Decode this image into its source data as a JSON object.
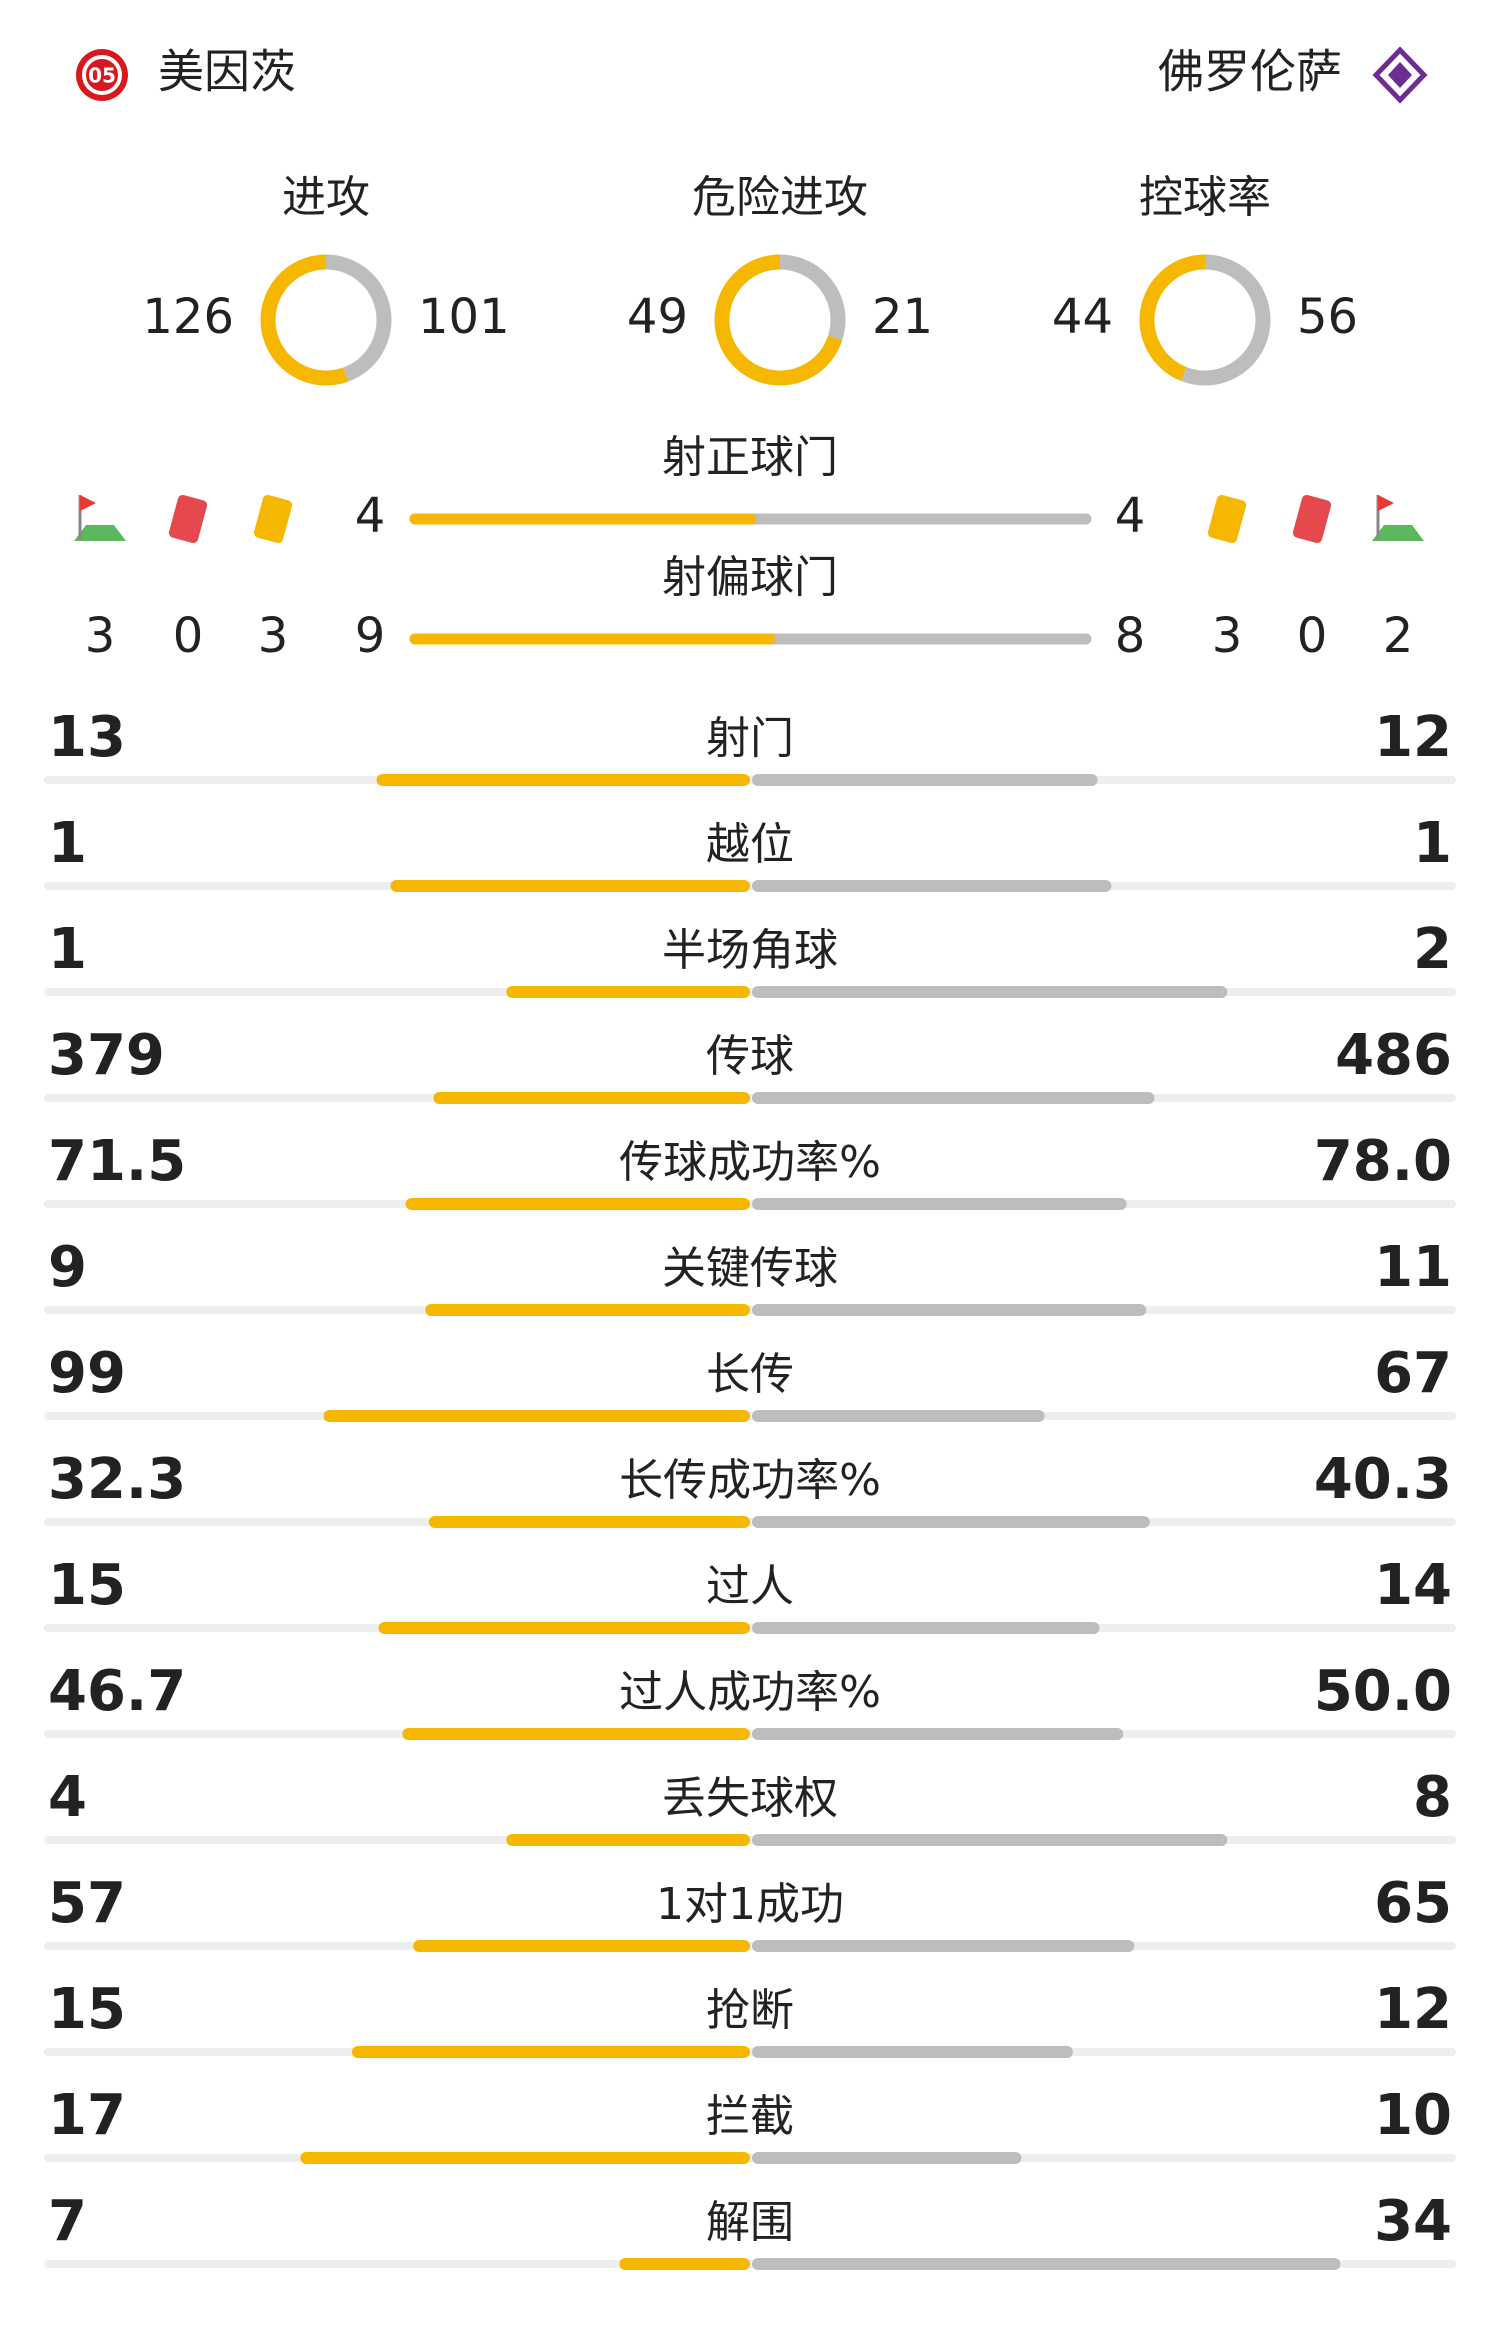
{
  "header": {
    "home_team": "美因茨",
    "away_team": "佛罗伦萨"
  },
  "rings": [
    {
      "label": "进攻",
      "home": 126,
      "away": 101
    },
    {
      "label": "危险进攻",
      "home": 49,
      "away": 21
    },
    {
      "label": "控球率",
      "home": 44,
      "away": 56
    }
  ],
  "shots": [
    {
      "label": "射正球门",
      "home": 4,
      "away": 4
    },
    {
      "label": "射偏球门",
      "home": 9,
      "away": 8
    }
  ],
  "discipline": {
    "home": {
      "corners": 3,
      "red_cards": 0,
      "yellow_cards": 3
    },
    "away": {
      "yellow_cards": 3,
      "red_cards": 0,
      "corners": 2
    }
  },
  "stats": [
    {
      "label": "射门",
      "home": "13",
      "away": "12"
    },
    {
      "label": "越位",
      "home": "1",
      "away": "1"
    },
    {
      "label": "半场角球",
      "home": "1",
      "away": "2"
    },
    {
      "label": "传球",
      "home": "379",
      "away": "486"
    },
    {
      "label": "传球成功率%",
      "home": "71.5",
      "away": "78.0"
    },
    {
      "label": "关键传球",
      "home": "9",
      "away": "11"
    },
    {
      "label": "长传",
      "home": "99",
      "away": "67"
    },
    {
      "label": "长传成功率%",
      "home": "32.3",
      "away": "40.3"
    },
    {
      "label": "过人",
      "home": "15",
      "away": "14"
    },
    {
      "label": "过人成功率%",
      "home": "46.7",
      "away": "50.0"
    },
    {
      "label": "丢失球权",
      "home": "4",
      "away": "8"
    },
    {
      "label": "1对1成功",
      "home": "57",
      "away": "65"
    },
    {
      "label": "抢断",
      "home": "15",
      "away": "12"
    },
    {
      "label": "拦截",
      "home": "17",
      "away": "10"
    },
    {
      "label": "解围",
      "home": "7",
      "away": "34"
    }
  ]
}
